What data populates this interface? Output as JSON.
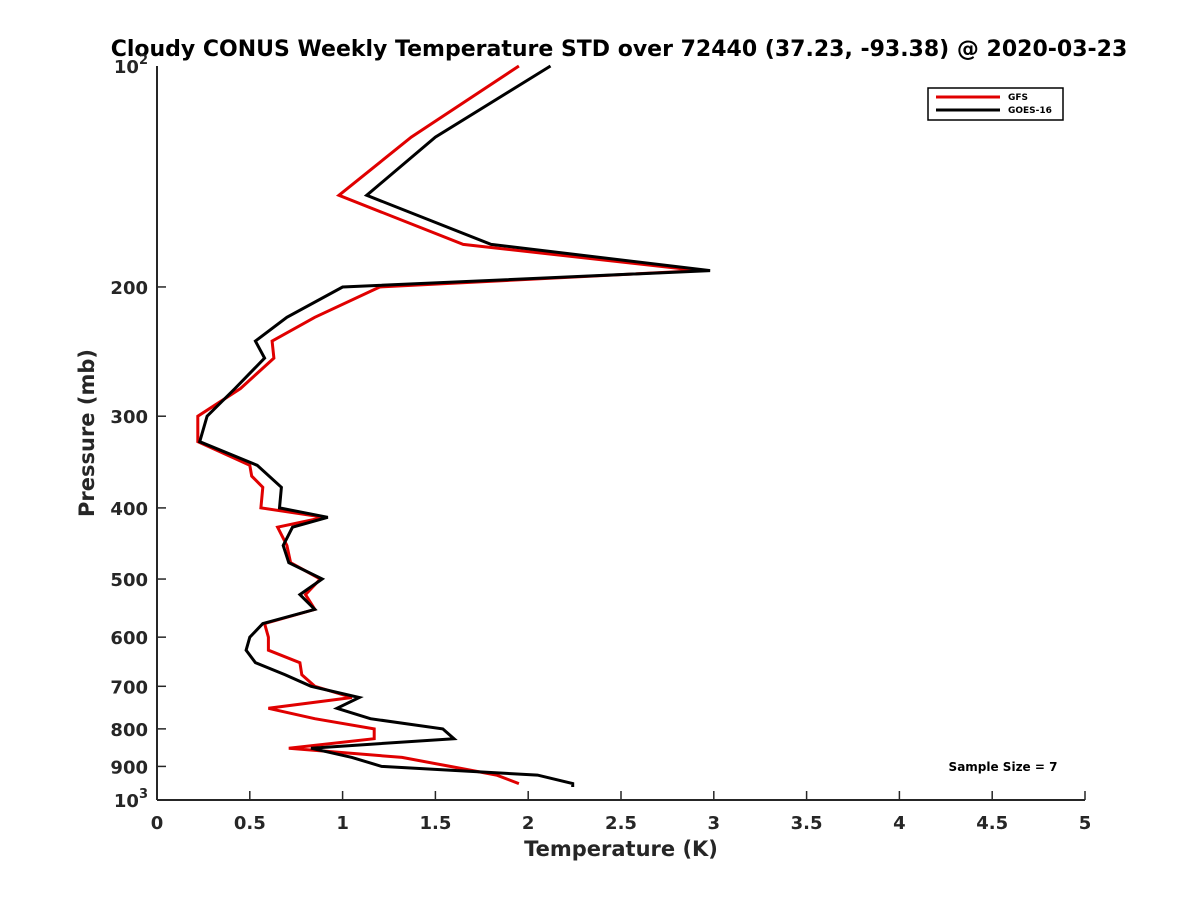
{
  "chart_data": {
    "type": "line",
    "title": "Cloudy CONUS Weekly Temperature STD over 72440 (37.23, -93.38) @ 2020-03-23",
    "xlabel": "Temperature (K)",
    "ylabel": "Pressure (mb)",
    "xlim": [
      0,
      5
    ],
    "ylim": [
      100,
      1000
    ],
    "y_scale": "log",
    "y_reversed": true,
    "grid": false,
    "legend_position": "top-right",
    "x_ticks": [
      0,
      0.5,
      1,
      1.5,
      2,
      2.5,
      3,
      3.5,
      4,
      4.5,
      5
    ],
    "x_tick_labels": [
      "0",
      "0.5",
      "1",
      "1.5",
      "2",
      "2.5",
      "3",
      "3.5",
      "4",
      "4.5",
      "5"
    ],
    "y_ticks": [
      200,
      300,
      400,
      500,
      600,
      700,
      800,
      900
    ],
    "y_tick_labels": [
      "200",
      "300",
      "400",
      "500",
      "600",
      "700",
      "800",
      "900"
    ],
    "y_end_labels": [
      {
        "base": "10",
        "exp": "2",
        "value": 100
      },
      {
        "base": "10",
        "exp": "3",
        "value": 1000
      }
    ],
    "annotation": "Sample Size = 7",
    "series": [
      {
        "name": "GFS",
        "color": "#e00000",
        "points": [
          [
            1.95,
            100
          ],
          [
            1.37,
            125
          ],
          [
            0.98,
            150
          ],
          [
            1.65,
            175
          ],
          [
            2.92,
            190
          ],
          [
            1.2,
            200
          ],
          [
            0.85,
            220
          ],
          [
            0.62,
            237
          ],
          [
            0.63,
            250
          ],
          [
            0.45,
            275
          ],
          [
            0.22,
            300
          ],
          [
            0.22,
            325
          ],
          [
            0.5,
            350
          ],
          [
            0.51,
            362
          ],
          [
            0.57,
            375
          ],
          [
            0.56,
            400
          ],
          [
            0.9,
            412
          ],
          [
            0.65,
            425
          ],
          [
            0.7,
            450
          ],
          [
            0.72,
            475
          ],
          [
            0.88,
            500
          ],
          [
            0.8,
            525
          ],
          [
            0.85,
            550
          ],
          [
            0.58,
            575
          ],
          [
            0.6,
            600
          ],
          [
            0.6,
            625
          ],
          [
            0.77,
            650
          ],
          [
            0.78,
            675
          ],
          [
            0.85,
            700
          ],
          [
            1.05,
            725
          ],
          [
            0.6,
            750
          ],
          [
            0.85,
            775
          ],
          [
            1.17,
            800
          ],
          [
            1.17,
            825
          ],
          [
            0.71,
            850
          ],
          [
            1.32,
            875
          ],
          [
            1.58,
            900
          ],
          [
            1.83,
            925
          ],
          [
            1.95,
            950
          ]
        ]
      },
      {
        "name": "GOES-16",
        "color": "#000000",
        "points": [
          [
            2.12,
            100
          ],
          [
            1.5,
            125
          ],
          [
            1.13,
            150
          ],
          [
            1.8,
            175
          ],
          [
            2.98,
            190
          ],
          [
            1.0,
            200
          ],
          [
            0.7,
            220
          ],
          [
            0.53,
            237
          ],
          [
            0.58,
            250
          ],
          [
            0.42,
            275
          ],
          [
            0.27,
            300
          ],
          [
            0.23,
            325
          ],
          [
            0.54,
            350
          ],
          [
            0.67,
            375
          ],
          [
            0.66,
            400
          ],
          [
            0.92,
            412
          ],
          [
            0.73,
            425
          ],
          [
            0.68,
            450
          ],
          [
            0.71,
            475
          ],
          [
            0.89,
            500
          ],
          [
            0.77,
            525
          ],
          [
            0.85,
            550
          ],
          [
            0.57,
            575
          ],
          [
            0.5,
            600
          ],
          [
            0.48,
            625
          ],
          [
            0.53,
            650
          ],
          [
            0.69,
            675
          ],
          [
            0.83,
            700
          ],
          [
            1.09,
            725
          ],
          [
            0.97,
            750
          ],
          [
            1.15,
            775
          ],
          [
            1.54,
            800
          ],
          [
            1.6,
            825
          ],
          [
            0.83,
            850
          ],
          [
            1.05,
            875
          ],
          [
            1.21,
            900
          ],
          [
            2.05,
            925
          ],
          [
            2.24,
            950
          ],
          [
            2.24,
            960
          ]
        ]
      }
    ]
  }
}
